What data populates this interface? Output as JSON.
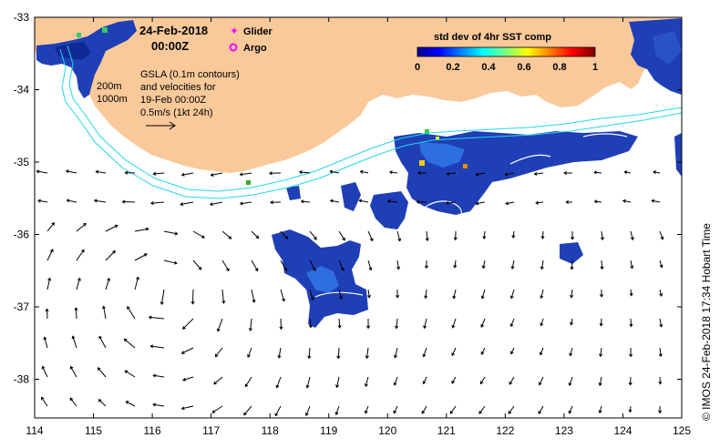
{
  "map": {
    "date_line1": "24-Feb-2018",
    "date_line2": "00:00Z",
    "legend": {
      "glider": "Glider",
      "argo": "Argo"
    },
    "gsla_note": [
      "GSLA (0.1m contours)",
      "and velocities for",
      "19-Feb 00:00Z",
      "0.5m/s (1kt 24h)"
    ],
    "isobath_labels": [
      "200m",
      "1000m"
    ],
    "credit": "© IMOS 24-Feb-2018 17:34 Hobart Time",
    "x_ticks": [
      "114",
      "115",
      "116",
      "117",
      "118",
      "119",
      "120",
      "121",
      "122",
      "123",
      "124",
      "125"
    ],
    "y_ticks": [
      "-33",
      "-34",
      "-35",
      "-36",
      "-37",
      "-38"
    ],
    "colorbar": {
      "title": "std dev of 4hr SST comp",
      "ticks": [
        "0",
        "0.2",
        "0.4",
        "0.6",
        "0.8",
        "1"
      ],
      "range": [
        0,
        1
      ]
    },
    "colors": {
      "land": "#f9c99a",
      "isobath": "#22d8e8",
      "contour": "#ffffff",
      "data_main": "#1f3fb6"
    }
  }
}
